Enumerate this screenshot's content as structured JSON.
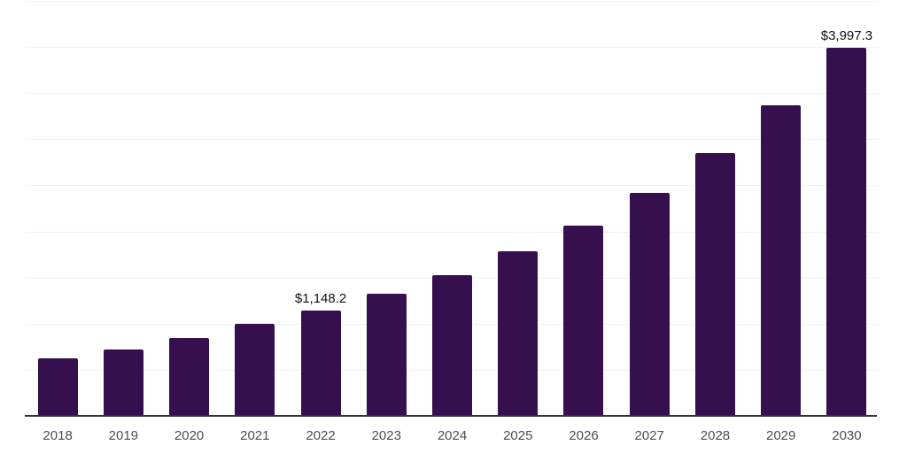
{
  "chart_data": {
    "type": "bar",
    "title": "",
    "xlabel": "",
    "ylabel": "",
    "categories": [
      "2018",
      "2019",
      "2020",
      "2021",
      "2022",
      "2023",
      "2024",
      "2025",
      "2026",
      "2027",
      "2028",
      "2029",
      "2030"
    ],
    "values": [
      630,
      730,
      855,
      1010,
      1148.2,
      1335,
      1540,
      1790,
      2075,
      2430,
      2860,
      3380,
      3997.3
    ],
    "data_labels": [
      "",
      "",
      "",
      "",
      "$1,148.2",
      "",
      "",
      "",
      "",
      "",
      "",
      "",
      "$3,997.3"
    ],
    "ylim": [
      0,
      4500
    ],
    "grid_step": 500,
    "grid": "horizontal",
    "legend_position": "none",
    "y_axis_labels_visible": false
  },
  "colors": {
    "bar": "#36104e",
    "axis_line": "#333333",
    "gridline": "#f1f1f1",
    "value_label": "#111111",
    "tick_label": "#4d4d4d",
    "background": "#ffffff"
  }
}
